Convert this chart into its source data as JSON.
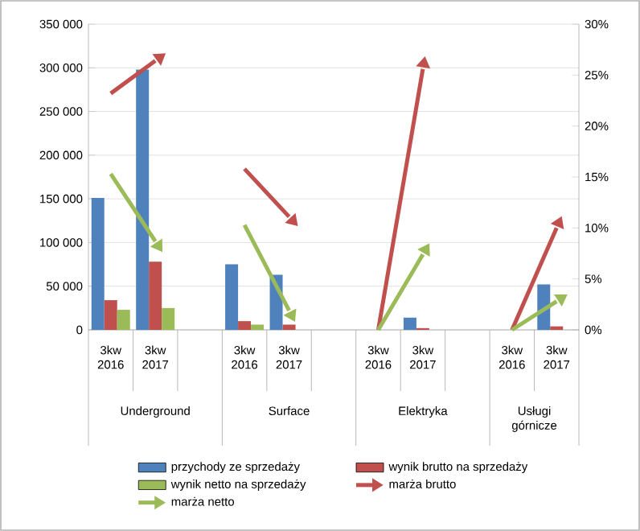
{
  "chart_data": {
    "type": "bar",
    "categories": [
      "3kw 2016",
      "3kw 2017",
      null,
      "3kw 2016",
      "3kw 2017",
      null,
      "3kw 2016",
      "3kw 2017",
      null,
      "3kw 2016",
      "3kw 2017"
    ],
    "annotations": [
      "Underground",
      "Surface",
      "Elektryka",
      "Usługi górnicze"
    ],
    "series": [
      {
        "name": "przychody ze sprzedaży",
        "color": "#4f81bd",
        "values": [
          151000,
          298000,
          null,
          75000,
          63000,
          null,
          0,
          14000,
          null,
          0,
          52000
        ]
      },
      {
        "name": "wynik brutto na sprzedaży",
        "color": "#c0504d",
        "values": [
          34000,
          78000,
          null,
          10000,
          6000,
          null,
          0,
          2000,
          null,
          0,
          4000
        ]
      },
      {
        "name": "wynik netto na sprzedaży",
        "color": "#9bbb59",
        "values": [
          23000,
          25000,
          null,
          6000,
          0,
          null,
          0,
          0,
          null,
          0,
          0
        ]
      },
      {
        "name": "marża brutto",
        "color": "#c0504d",
        "type": "line",
        "axis": "y2",
        "values": [
          23.2,
          26.4,
          null,
          15.8,
          11.1,
          null,
          0,
          25.6,
          null,
          0,
          10.0
        ]
      },
      {
        "name": "marża netto",
        "color": "#9bbb59",
        "type": "line",
        "axis": "y2",
        "values": [
          15.3,
          8.7,
          null,
          10.3,
          1.9,
          null,
          0,
          7.4,
          null,
          0,
          2.8
        ]
      }
    ],
    "ylim": [
      0,
      350000
    ],
    "yticks": [
      0,
      {
        "value": 50000,
        "label": "50 000"
      },
      {
        "value": 100000,
        "label": "100 000"
      },
      {
        "value": 150000,
        "label": "150 000"
      },
      {
        "value": 200000,
        "label": "200 000"
      },
      {
        "value": 250000,
        "label": "250 000"
      },
      {
        "value": 300000,
        "label": "300 000"
      },
      {
        "value": 350000,
        "label": "350 000"
      }
    ],
    "y2lim": [
      0,
      30
    ],
    "y2ticks": [
      {
        "value": 0,
        "label": "0%"
      },
      {
        "value": 5,
        "label": "5%"
      },
      {
        "value": 10,
        "label": "10%"
      },
      {
        "value": 15,
        "label": "15%"
      },
      {
        "value": 20,
        "label": "20%"
      },
      {
        "value": 25,
        "label": "25%"
      },
      {
        "value": 30,
        "label": "30%"
      }
    ],
    "grid": "y",
    "legend": "bottom",
    "line_style": "solid"
  }
}
